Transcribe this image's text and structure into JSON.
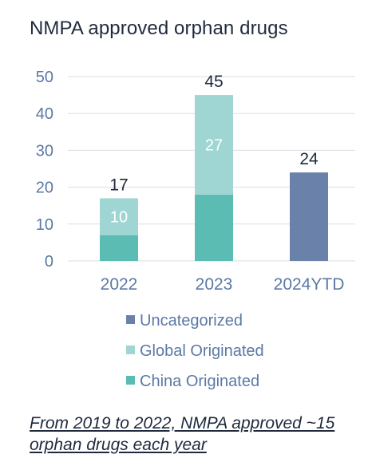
{
  "title": "NMPA approved orphan drugs",
  "footnote": "From 2019 to 2022, NMPA approved ~15 orphan drugs each year",
  "colors": {
    "uncategorized": "#6a82aa",
    "global": "#9fd5d2",
    "china": "#5bbcb3",
    "axis_text": "#5b79a6",
    "grid": "#d9dde3",
    "dark_text": "#1f2a3d"
  },
  "chart_data": {
    "type": "bar",
    "stacked": true,
    "categories": [
      "2022",
      "2023",
      "2024YTD"
    ],
    "series": [
      {
        "name": "China Originated",
        "values": [
          7,
          18,
          0
        ],
        "color": "#5bbcb3"
      },
      {
        "name": "Global Originated",
        "values": [
          10,
          27,
          0
        ],
        "color": "#9fd5d2"
      },
      {
        "name": "Uncategorized",
        "values": [
          0,
          0,
          24
        ],
        "color": "#6a82aa"
      }
    ],
    "segment_labels": {
      "Global Originated": [
        "10",
        "27",
        ""
      ]
    },
    "totals": [
      17,
      45,
      24
    ],
    "ylim": [
      0,
      50
    ],
    "yticks": [
      0,
      10,
      20,
      30,
      40,
      50
    ],
    "grid": true,
    "legend": {
      "position": "bottom",
      "entries": [
        "Uncategorized",
        "Global Originated",
        "China Originated"
      ]
    }
  }
}
